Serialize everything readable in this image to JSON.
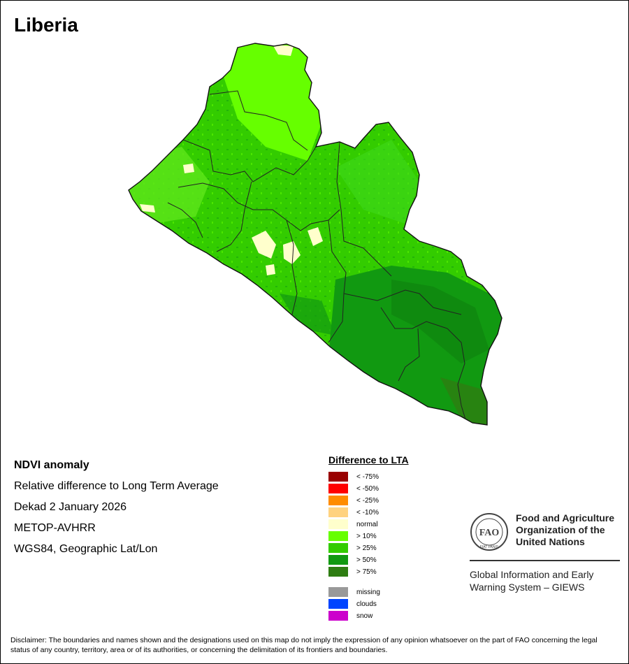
{
  "map_title": "Liberia",
  "info": {
    "product": "NDVI anomaly",
    "description": "Relative difference to Long Term Average",
    "period": "Dekad 2 January 2026",
    "sensor": "METOP-AVHRR",
    "projection": "WGS84, Geographic Lat/Lon"
  },
  "legend": {
    "title": "Difference to LTA",
    "items": [
      {
        "label": "< -75%",
        "color": "#990000"
      },
      {
        "label": "< -50%",
        "color": "#ff0000"
      },
      {
        "label": "< -25%",
        "color": "#ff8c00"
      },
      {
        "label": "< -10%",
        "color": "#ffd27f"
      },
      {
        "label": "normal",
        "color": "#ffffcc"
      },
      {
        "label": "> 10%",
        "color": "#66ff00"
      },
      {
        "label": "> 25%",
        "color": "#33cc00"
      },
      {
        "label": "> 50%",
        "color": "#119911"
      },
      {
        "label": "> 75%",
        "color": "#2e7d12"
      }
    ],
    "extra": [
      {
        "label": "missing",
        "color": "#999999"
      },
      {
        "label": "clouds",
        "color": "#0044ff"
      },
      {
        "label": "snow",
        "color": "#cc00cc"
      }
    ]
  },
  "org": {
    "logo_text": "FAO",
    "logo_motto": "FIAT PANIS",
    "name": "Food and Agriculture Organization of the United Nations",
    "system": "Global Information and Early Warning System – GIEWS"
  },
  "disclaimer": "Disclaimer: The boundaries and names shown and the designations used on this map do not imply the expression of any opinion whatsoever on the part of FAO concerning the legal status of any country, territory, area or of its authorities, or concerning the delimitation of its frontiers and boundaries."
}
